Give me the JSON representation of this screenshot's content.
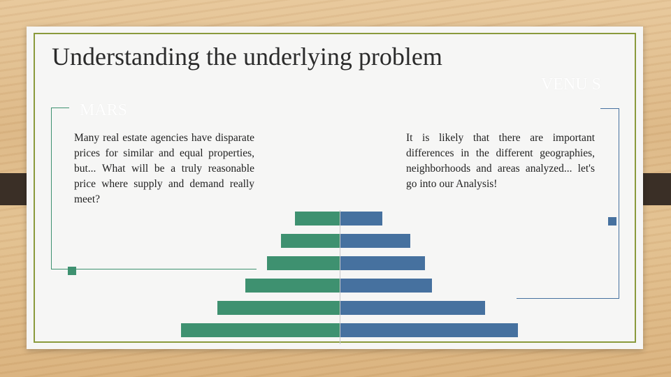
{
  "slide": {
    "title": "Understanding the underlying problem",
    "left_heading": "MARS",
    "right_heading": "VENU S",
    "left_text": "Many real estate agencies have disparate prices for similar and equal properties, but... What will be a truly reasonable price where supply and demand really meet?",
    "right_text": "It is likely that there are important differences in the different geographies, neighborhoods and areas analyzed... let's go into our Analysis!"
  },
  "colors": {
    "green": "#3e9170",
    "blue": "#46719f",
    "frame": "#8a9a3c",
    "background_wood": "#dcb785"
  },
  "chart_data": {
    "type": "bar",
    "orientation": "horizontal-pyramid",
    "series": [
      {
        "color": "#3e9170",
        "values": [
          64,
          84,
          104,
          135,
          175,
          227
        ]
      },
      {
        "color": "#46719f",
        "values": [
          60,
          100,
          121,
          131,
          207,
          254
        ]
      }
    ]
  }
}
